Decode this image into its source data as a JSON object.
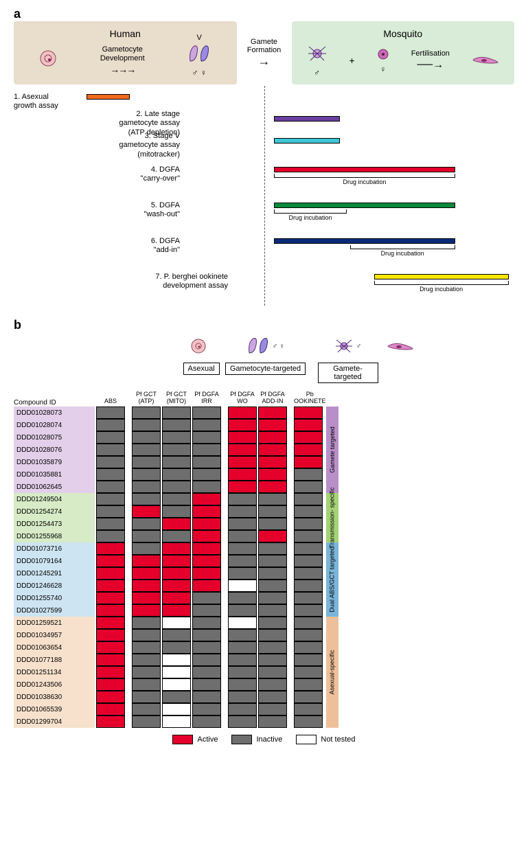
{
  "panelA": {
    "label": "a",
    "human_title": "Human",
    "mosquito_title": "Mosquito",
    "steps": {
      "gam_dev": "Gametocyte\nDevelopment",
      "gam_form": "Gamete\nFormation",
      "fert": "Fertilisation",
      "stageV": "V",
      "male": "♂",
      "female": "♀",
      "plus": "+"
    },
    "assays": [
      {
        "id": 1,
        "label": "1. Asexual\ngrowth assay",
        "color": "#f26a1b",
        "left_pct": 1,
        "width_pct": 10,
        "label_width": 100,
        "drug": null
      },
      {
        "id": 2,
        "label": "2. Late stage\ngametocyte assay\n(ATP depletion)",
        "color": "#6a3fa0",
        "left_pct": 27,
        "width_pct": 20,
        "label_width": 250,
        "drug": null
      },
      {
        "id": 3,
        "label": "3. Stage V\ngametocyte assay\n(mitotracker)",
        "color": "#3fc7d6",
        "left_pct": 27,
        "width_pct": 20,
        "label_width": 250,
        "drug": null
      },
      {
        "id": 4,
        "label": "4. DGFA\n\"carry-over\"",
        "color": "#e4002b",
        "left_pct": 27,
        "width_pct": 55,
        "label_width": 250,
        "drug": {
          "left_pct": 27,
          "width_pct": 55,
          "text": "Drug incubation"
        }
      },
      {
        "id": 5,
        "label": "5. DGFA\n\"wash-out\"",
        "color": "#0a8a3a",
        "left_pct": 27,
        "width_pct": 55,
        "label_width": 250,
        "drug": {
          "left_pct": 27,
          "width_pct": 22,
          "text": "Drug incubation"
        }
      },
      {
        "id": 6,
        "label": "6. DGFA\n\"add-in\"",
        "color": "#0a2a7a",
        "left_pct": 27,
        "width_pct": 55,
        "label_width": 250,
        "drug": {
          "left_pct": 50,
          "width_pct": 32,
          "text": "Drug incubation"
        }
      },
      {
        "id": 7,
        "label": "7. P. berghei ookinete\ndevelopment assay",
        "color": "#ffe600",
        "left_pct": 50,
        "width_pct": 48,
        "label_width": 320,
        "drug": {
          "left_pct": 50,
          "width_pct": 48,
          "text": "Drug incubation"
        }
      }
    ],
    "colors": {
      "human_bg": "#e9ddcb",
      "mosquito_bg": "#d8ecd7",
      "dashed": "#555555"
    }
  },
  "panelB": {
    "label": "b",
    "col_groups": [
      {
        "title": "Asexual",
        "icons": "asexual",
        "cols": [
          {
            "key": "ABS",
            "hdr": "ABS"
          }
        ]
      },
      {
        "title": "Gametocyte-targeted",
        "icons": "gct",
        "cols": [
          {
            "key": "ATP",
            "hdr": "Pf GCT\n(ATP)"
          },
          {
            "key": "MITO",
            "hdr": "Pf GCT\n(MITO)"
          },
          {
            "key": "IRR",
            "hdr": "Pf DGFA\nIRR"
          }
        ]
      },
      {
        "title": "Gamete-targeted",
        "icons": "gamete",
        "cols": [
          {
            "key": "WO",
            "hdr": "Pf DGFA\nWO"
          },
          {
            "key": "ADDIN",
            "hdr": "Pf DGFA\nADD-IN"
          }
        ]
      },
      {
        "title": "",
        "icons": "ookinete",
        "cols": [
          {
            "key": "OOK",
            "hdr": "Pb\nOOKINETE"
          }
        ]
      }
    ],
    "categories": [
      {
        "name": "Gamete targeted",
        "bg": "#e3cfe9",
        "stripe": "#b98fc9"
      },
      {
        "name": "Transmission-\nspecific",
        "bg": "#d6ebc6",
        "stripe": "#a5d276"
      },
      {
        "name": "Dual ABS/GCT targeted",
        "bg": "#cde4f2",
        "stripe": "#7bb5d9"
      },
      {
        "name": "Asexual-specific",
        "bg": "#f7e1cc",
        "stripe": "#eec09a"
      }
    ],
    "state_colors": {
      "A": "#e4002b",
      "I": "#6e6e6e",
      "N": "#ffffff"
    },
    "rows": [
      {
        "cat": 0,
        "id": "DDD01028073",
        "v": {
          "ABS": "I",
          "ATP": "I",
          "MITO": "I",
          "IRR": "I",
          "WO": "A",
          "ADDIN": "A",
          "OOK": "A"
        }
      },
      {
        "cat": 0,
        "id": "DDD01028074",
        "v": {
          "ABS": "I",
          "ATP": "I",
          "MITO": "I",
          "IRR": "I",
          "WO": "A",
          "ADDIN": "A",
          "OOK": "A"
        }
      },
      {
        "cat": 0,
        "id": "DDD01028075",
        "v": {
          "ABS": "I",
          "ATP": "I",
          "MITO": "I",
          "IRR": "I",
          "WO": "A",
          "ADDIN": "A",
          "OOK": "A"
        }
      },
      {
        "cat": 0,
        "id": "DDD01028076",
        "v": {
          "ABS": "I",
          "ATP": "I",
          "MITO": "I",
          "IRR": "I",
          "WO": "A",
          "ADDIN": "A",
          "OOK": "A"
        }
      },
      {
        "cat": 0,
        "id": "DDD01035879",
        "v": {
          "ABS": "I",
          "ATP": "I",
          "MITO": "I",
          "IRR": "I",
          "WO": "A",
          "ADDIN": "A",
          "OOK": "A"
        }
      },
      {
        "cat": 0,
        "id": "DDD01035881",
        "v": {
          "ABS": "I",
          "ATP": "I",
          "MITO": "I",
          "IRR": "I",
          "WO": "A",
          "ADDIN": "A",
          "OOK": "I"
        }
      },
      {
        "cat": 0,
        "id": "DDD01062645",
        "v": {
          "ABS": "I",
          "ATP": "I",
          "MITO": "I",
          "IRR": "I",
          "WO": "A",
          "ADDIN": "A",
          "OOK": "I"
        }
      },
      {
        "cat": 1,
        "id": "DDD01249504",
        "v": {
          "ABS": "I",
          "ATP": "I",
          "MITO": "I",
          "IRR": "A",
          "WO": "I",
          "ADDIN": "I",
          "OOK": "I"
        }
      },
      {
        "cat": 1,
        "id": "DDD01254274",
        "v": {
          "ABS": "I",
          "ATP": "A",
          "MITO": "I",
          "IRR": "A",
          "WO": "I",
          "ADDIN": "I",
          "OOK": "I"
        }
      },
      {
        "cat": 1,
        "id": "DDD01254473",
        "v": {
          "ABS": "I",
          "ATP": "I",
          "MITO": "A",
          "IRR": "A",
          "WO": "I",
          "ADDIN": "I",
          "OOK": "I"
        }
      },
      {
        "cat": 1,
        "id": "DDD01255968",
        "v": {
          "ABS": "I",
          "ATP": "I",
          "MITO": "I",
          "IRR": "A",
          "WO": "I",
          "ADDIN": "A",
          "OOK": "I"
        }
      },
      {
        "cat": 2,
        "id": "DDD01073716",
        "v": {
          "ABS": "A",
          "ATP": "I",
          "MITO": "A",
          "IRR": "A",
          "WO": "I",
          "ADDIN": "I",
          "OOK": "I"
        }
      },
      {
        "cat": 2,
        "id": "DDD01079164",
        "v": {
          "ABS": "A",
          "ATP": "A",
          "MITO": "A",
          "IRR": "A",
          "WO": "I",
          "ADDIN": "I",
          "OOK": "I"
        }
      },
      {
        "cat": 2,
        "id": "DDD01245291",
        "v": {
          "ABS": "A",
          "ATP": "A",
          "MITO": "A",
          "IRR": "A",
          "WO": "I",
          "ADDIN": "I",
          "OOK": "I"
        }
      },
      {
        "cat": 2,
        "id": "DDD01246628",
        "v": {
          "ABS": "A",
          "ATP": "A",
          "MITO": "A",
          "IRR": "A",
          "WO": "N",
          "ADDIN": "I",
          "OOK": "I"
        }
      },
      {
        "cat": 2,
        "id": "DDD01255740",
        "v": {
          "ABS": "A",
          "ATP": "A",
          "MITO": "A",
          "IRR": "I",
          "WO": "I",
          "ADDIN": "I",
          "OOK": "I"
        }
      },
      {
        "cat": 2,
        "id": "DDD01027599",
        "v": {
          "ABS": "A",
          "ATP": "A",
          "MITO": "A",
          "IRR": "I",
          "WO": "I",
          "ADDIN": "I",
          "OOK": "I"
        }
      },
      {
        "cat": 3,
        "id": "DDD01259521",
        "v": {
          "ABS": "A",
          "ATP": "I",
          "MITO": "N",
          "IRR": "I",
          "WO": "N",
          "ADDIN": "I",
          "OOK": "I"
        }
      },
      {
        "cat": 3,
        "id": "DDD01034957",
        "v": {
          "ABS": "A",
          "ATP": "I",
          "MITO": "I",
          "IRR": "I",
          "WO": "I",
          "ADDIN": "I",
          "OOK": "I"
        }
      },
      {
        "cat": 3,
        "id": "DDD01063654",
        "v": {
          "ABS": "A",
          "ATP": "I",
          "MITO": "I",
          "IRR": "I",
          "WO": "I",
          "ADDIN": "I",
          "OOK": "I"
        }
      },
      {
        "cat": 3,
        "id": "DDD01077188",
        "v": {
          "ABS": "A",
          "ATP": "I",
          "MITO": "N",
          "IRR": "I",
          "WO": "I",
          "ADDIN": "I",
          "OOK": "I"
        }
      },
      {
        "cat": 3,
        "id": "DDD01251134",
        "v": {
          "ABS": "A",
          "ATP": "I",
          "MITO": "N",
          "IRR": "I",
          "WO": "I",
          "ADDIN": "I",
          "OOK": "I"
        }
      },
      {
        "cat": 3,
        "id": "DDD01243506",
        "v": {
          "ABS": "A",
          "ATP": "I",
          "MITO": "N",
          "IRR": "I",
          "WO": "I",
          "ADDIN": "I",
          "OOK": "I"
        }
      },
      {
        "cat": 3,
        "id": "DDD01038630",
        "v": {
          "ABS": "A",
          "ATP": "I",
          "MITO": "I",
          "IRR": "I",
          "WO": "I",
          "ADDIN": "I",
          "OOK": "I"
        }
      },
      {
        "cat": 3,
        "id": "DDD01065539",
        "v": {
          "ABS": "A",
          "ATP": "I",
          "MITO": "N",
          "IRR": "I",
          "WO": "I",
          "ADDIN": "I",
          "OOK": "I"
        }
      },
      {
        "cat": 3,
        "id": "DDD01299704",
        "v": {
          "ABS": "A",
          "ATP": "I",
          "MITO": "N",
          "IRR": "I",
          "WO": "I",
          "ADDIN": "I",
          "OOK": "I"
        }
      }
    ],
    "compound_id_hdr": "Compound ID",
    "legend": {
      "active": "Active",
      "inactive": "Inactive",
      "nottested": "Not tested"
    }
  }
}
